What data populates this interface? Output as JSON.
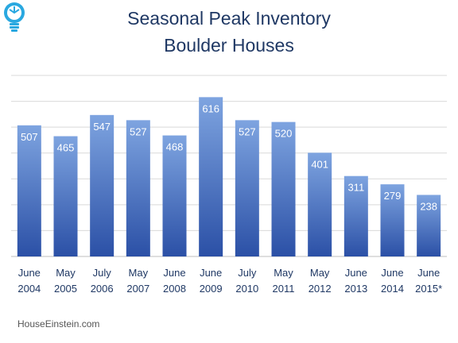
{
  "title_line1": "Seasonal Peak Inventory",
  "title_line2": "Boulder Houses",
  "source": "HouseEinstein.com",
  "logo_icon": "lightbulb-icon",
  "colors": {
    "bar_top": "#7ea4e0",
    "bar_bottom": "#2b50a6",
    "title": "#1f3864",
    "grid": "#d9d9d9"
  },
  "chart_data": {
    "type": "bar",
    "title": "Seasonal Peak Inventory Boulder Houses",
    "xlabel": "",
    "ylabel": "",
    "ylim": [
      0,
      700
    ],
    "grid": true,
    "categories": [
      [
        "June",
        "2004"
      ],
      [
        "May",
        "2005"
      ],
      [
        "July",
        "2006"
      ],
      [
        "May",
        "2007"
      ],
      [
        "June",
        "2008"
      ],
      [
        "June",
        "2009"
      ],
      [
        "July",
        "2010"
      ],
      [
        "May",
        "2011"
      ],
      [
        "May",
        "2012"
      ],
      [
        "June",
        "2013"
      ],
      [
        "June",
        "2014"
      ],
      [
        "June",
        "2015*"
      ]
    ],
    "values": [
      507,
      465,
      547,
      527,
      468,
      616,
      527,
      520,
      401,
      311,
      279,
      238
    ]
  }
}
